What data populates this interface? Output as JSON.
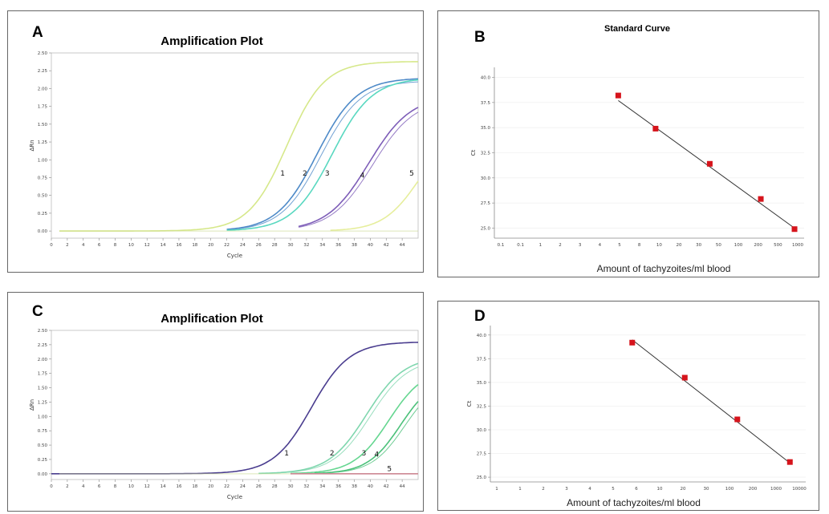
{
  "panels": [
    {
      "letter": "A",
      "title": "Amplification Plot"
    },
    {
      "letter": "B",
      "title": "Standard Curve"
    },
    {
      "letter": "C",
      "title": "Amplification Plot"
    },
    {
      "letter": "D",
      "title": ""
    }
  ],
  "chart_data": [
    {
      "panel": "A",
      "type": "line",
      "title": "Amplification Plot",
      "xlabel": "Cycle",
      "ylabel": "ΔRn",
      "xlim": [
        0,
        46
      ],
      "ylim": [
        -0.1,
        2.5
      ],
      "xticks": [
        0,
        2,
        4,
        6,
        8,
        10,
        12,
        14,
        16,
        18,
        20,
        22,
        24,
        26,
        28,
        30,
        32,
        34,
        36,
        38,
        40,
        42,
        44
      ],
      "yticks": [
        0.0,
        0.25,
        0.5,
        0.75,
        1.0,
        1.25,
        1.5,
        1.75,
        2.0,
        2.25,
        2.5
      ],
      "series": [
        {
          "name": "1",
          "label_x": 29.0,
          "label_y": 0.78,
          "color": "#d6e88a",
          "plateau": 2.38,
          "midpoint": 29.5,
          "slope": 0.42,
          "start": 1
        },
        {
          "name": "2",
          "label_x": 31.8,
          "label_y": 0.78,
          "color": "#4e8ac8",
          "plateau": 2.15,
          "midpoint": 33.3,
          "slope": 0.4,
          "start": 22
        },
        {
          "name": "3",
          "label_x": 34.6,
          "label_y": 0.78,
          "color": "#59d8c0",
          "plateau": 2.15,
          "midpoint": 35.2,
          "slope": 0.4,
          "start": 22
        },
        {
          "name": "4",
          "label_x": 39.0,
          "label_y": 0.75,
          "color": "#7d5db8",
          "plateau": 1.9,
          "midpoint": 39.8,
          "slope": 0.38,
          "start": 31
        },
        {
          "name": "5",
          "label_x": 45.2,
          "label_y": 0.78,
          "color": "#e6ee9c",
          "plateau": 1.4,
          "midpoint": 46.0,
          "slope": 0.45,
          "start": 35
        }
      ]
    },
    {
      "panel": "B",
      "type": "scatter",
      "title": "Standard Curve",
      "xlabel": "Amount of tachyzoites/ml blood",
      "ylabel": "Ct",
      "xscale": "log",
      "xlim": [
        0.01,
        1000
      ],
      "ylim": [
        24,
        41
      ],
      "xticks": [
        "0.1",
        "0.1",
        "1",
        "2",
        "3",
        "4",
        "5",
        "8",
        "10",
        "20",
        "30",
        "50",
        "100",
        "200",
        "500",
        "1000"
      ],
      "yticks": [
        25.0,
        27.5,
        30.0,
        32.5,
        35.0,
        37.5,
        40.0
      ],
      "points": [
        {
          "x": 1,
          "y": 38.2
        },
        {
          "x": 4,
          "y": 34.9
        },
        {
          "x": 30,
          "y": 31.4
        },
        {
          "x": 200,
          "y": 27.9
        },
        {
          "x": 700,
          "y": 24.9
        }
      ],
      "fit": {
        "x1": 1,
        "y1": 37.7,
        "x2": 700,
        "y2": 25.0
      }
    },
    {
      "panel": "C",
      "type": "line",
      "title": "Amplification Plot",
      "xlabel": "Cycle",
      "ylabel": "ΔRn",
      "xlim": [
        0,
        46
      ],
      "ylim": [
        -0.1,
        2.5
      ],
      "xticks": [
        0,
        2,
        4,
        6,
        8,
        10,
        12,
        14,
        16,
        18,
        20,
        22,
        24,
        26,
        28,
        30,
        32,
        34,
        36,
        38,
        40,
        42,
        44
      ],
      "yticks": [
        0.0,
        0.25,
        0.5,
        0.75,
        1.0,
        1.25,
        1.5,
        1.75,
        2.0,
        2.25,
        2.5
      ],
      "series": [
        {
          "name": "1",
          "label_x": 29.5,
          "label_y": 0.32,
          "color": "#4a3d8f",
          "plateau": 2.3,
          "midpoint": 32.6,
          "slope": 0.42,
          "start": 0
        },
        {
          "name": "2",
          "label_x": 35.2,
          "label_y": 0.32,
          "color": "#7fd6ae",
          "plateau": 2.05,
          "midpoint": 39.5,
          "slope": 0.42,
          "start": 26
        },
        {
          "name": "3",
          "label_x": 39.2,
          "label_y": 0.32,
          "color": "#65d690",
          "plateau": 1.85,
          "midpoint": 42.3,
          "slope": 0.45,
          "start": 30
        },
        {
          "name": "4",
          "label_x": 40.8,
          "label_y": 0.3,
          "color": "#4cc17a",
          "plateau": 1.7,
          "midpoint": 43.8,
          "slope": 0.48,
          "start": 33
        },
        {
          "name": "5",
          "label_x": 42.4,
          "label_y": 0.05,
          "color": "#d05a9a",
          "plateau": 0.0,
          "midpoint": 50.0,
          "slope": 0.4,
          "start": 30
        }
      ]
    },
    {
      "panel": "D",
      "type": "scatter",
      "title": "",
      "xlabel": "Amount of tachyzoites/ml blood",
      "ylabel": "Ct",
      "xscale": "log",
      "xlim": [
        0.01,
        10000
      ],
      "ylim": [
        24.5,
        41
      ],
      "xticks": [
        "1",
        "1",
        "2",
        "3",
        "4",
        "5",
        "6",
        "10",
        "20",
        "30",
        "100",
        "200",
        "1000",
        "10000"
      ],
      "yticks": [
        25.0,
        27.5,
        30.0,
        32.5,
        35.0,
        37.5,
        40.0
      ],
      "points": [
        {
          "x": 5,
          "y": 39.2
        },
        {
          "x": 50,
          "y": 35.5
        },
        {
          "x": 500,
          "y": 31.1
        },
        {
          "x": 5000,
          "y": 26.6
        }
      ],
      "fit": {
        "x1": 5,
        "y1": 39.5,
        "x2": 5000,
        "y2": 26.5
      }
    }
  ]
}
